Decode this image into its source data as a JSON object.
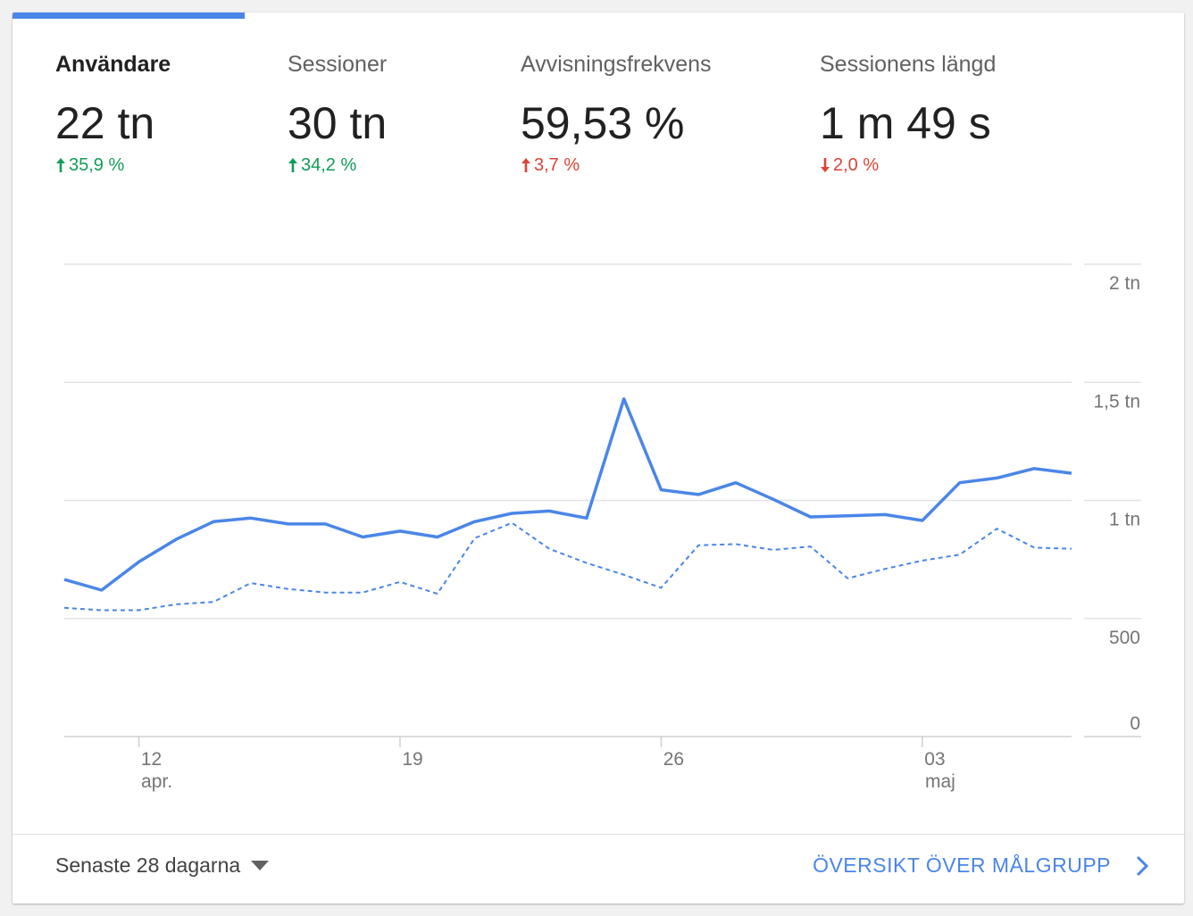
{
  "metrics": [
    {
      "label": "Användare",
      "value": "22 tn",
      "change": "35,9 %",
      "direction": "up",
      "sentiment": "good",
      "active": true
    },
    {
      "label": "Sessioner",
      "value": "30 tn",
      "change": "34,2 %",
      "direction": "up",
      "sentiment": "good",
      "active": false
    },
    {
      "label": "Avvisningsfrekvens",
      "value": "59,53 %",
      "change": "3,7 %",
      "direction": "up",
      "sentiment": "bad",
      "active": false
    },
    {
      "label": "Sessionens längd",
      "value": "1 m 49 s",
      "change": "2,0 %",
      "direction": "down",
      "sentiment": "bad",
      "active": false
    }
  ],
  "colors": {
    "accent": "#4a86e8",
    "positive": "#0f9d58",
    "negative": "#db4437"
  },
  "chart_data": {
    "type": "line",
    "y_tick_labels": [
      "0",
      "500",
      "1 tn",
      "1,5 tn",
      "2 tn"
    ],
    "y_ticks": [
      0,
      500,
      1000,
      1500,
      2000
    ],
    "ylim": [
      0,
      2000
    ],
    "x_ticks": [
      {
        "day": "12",
        "month": "apr.",
        "index": 2
      },
      {
        "day": "19",
        "month": "",
        "index": 9
      },
      {
        "day": "26",
        "month": "",
        "index": 16
      },
      {
        "day": "03",
        "month": "maj",
        "index": 23
      }
    ],
    "grid": true,
    "series": [
      {
        "style": "solid",
        "values": [
          665,
          620,
          740,
          835,
          910,
          925,
          900,
          900,
          845,
          870,
          845,
          910,
          945,
          955,
          925,
          1430,
          1045,
          1025,
          1075,
          1005,
          930,
          935,
          940,
          915,
          1075,
          1095,
          1135,
          1115
        ]
      },
      {
        "style": "dashed",
        "values": [
          545,
          535,
          535,
          560,
          570,
          650,
          625,
          610,
          610,
          655,
          605,
          840,
          905,
          795,
          735,
          685,
          630,
          810,
          815,
          790,
          805,
          670,
          710,
          745,
          770,
          880,
          800,
          795
        ]
      }
    ]
  },
  "footer": {
    "range_label": "Senaste 28 dagarna",
    "overview_label": "ÖVERSIKT ÖVER MÅLGRUPP"
  }
}
